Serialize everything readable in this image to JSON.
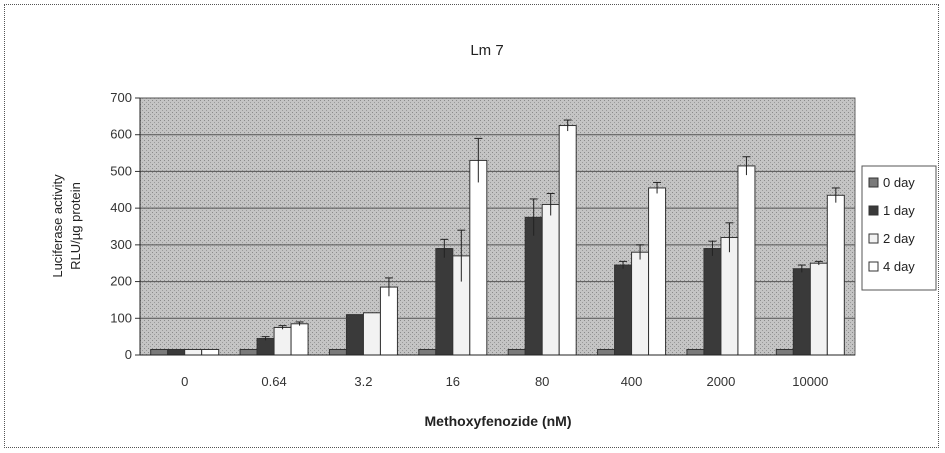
{
  "chart_data": {
    "type": "bar",
    "title": "Lm 7",
    "xlabel": "Methoxyfenozide (nM)",
    "ylabel": [
      "Luciferase activity",
      "RLU/µg protein"
    ],
    "ylim": [
      0,
      700
    ],
    "yticks": [
      0,
      100,
      200,
      300,
      400,
      500,
      600,
      700
    ],
    "grid": true,
    "legend_position": "right",
    "categories": [
      "0",
      "0.64",
      "3.2",
      "16",
      "80",
      "400",
      "2000",
      "10000"
    ],
    "series": [
      {
        "name": "0 day",
        "fill": "#7a7a7a",
        "values": [
          15,
          15,
          15,
          15,
          15,
          15,
          15,
          15
        ],
        "errors": [
          0,
          0,
          0,
          0,
          0,
          0,
          0,
          0
        ]
      },
      {
        "name": "1 day",
        "fill": "#3a3a3a",
        "values": [
          15,
          45,
          110,
          290,
          375,
          245,
          290,
          235
        ],
        "errors": [
          0,
          5,
          0,
          25,
          50,
          10,
          20,
          10
        ]
      },
      {
        "name": "2 day",
        "fill": "#f2f2f2",
        "values": [
          15,
          75,
          115,
          270,
          410,
          280,
          320,
          250
        ],
        "errors": [
          0,
          5,
          0,
          70,
          30,
          20,
          40,
          5
        ]
      },
      {
        "name": "4 day",
        "fill": "#ffffff",
        "values": [
          15,
          85,
          185,
          530,
          625,
          455,
          515,
          435
        ],
        "errors": [
          0,
          5,
          25,
          60,
          15,
          15,
          25,
          20
        ]
      }
    ]
  }
}
